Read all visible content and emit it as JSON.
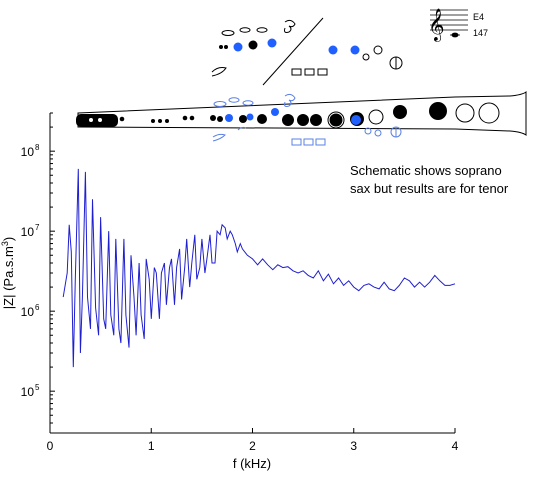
{
  "chart_data": {
    "type": "line",
    "title": "",
    "xlabel": "f (kHz)",
    "ylabel_parts": [
      "|Z| (Pa.s.m",
      "3",
      ")"
    ],
    "x_ticks": [
      0,
      1,
      2,
      3,
      4
    ],
    "y_ticks": [
      {
        "base": "10",
        "exp": "5",
        "value": 100000
      },
      {
        "base": "10",
        "exp": "6",
        "value": 1000000
      },
      {
        "base": "10",
        "exp": "7",
        "value": 10000000
      },
      {
        "base": "10",
        "exp": "8",
        "value": 100000000
      }
    ],
    "xlim": [
      0,
      4
    ],
    "ylim": [
      30000,
      300000000
    ],
    "y_scale": "log",
    "grid": false,
    "line_color": "#1f1fd0",
    "annotation_lines": [
      "Schematic shows soprano",
      "sax but results are for tenor"
    ],
    "note_label": "E4",
    "note_number": "147",
    "series": [
      {
        "x": [
          0.13,
          0.17,
          0.19,
          0.21,
          0.23,
          0.25,
          0.28,
          0.3,
          0.32,
          0.35,
          0.37,
          0.4,
          0.42,
          0.45,
          0.48,
          0.5,
          0.53,
          0.55,
          0.58,
          0.6,
          0.63,
          0.65,
          0.68,
          0.7,
          0.73,
          0.75,
          0.78,
          0.8,
          0.83,
          0.85,
          0.88,
          0.9,
          0.93,
          0.95,
          0.98,
          1.0,
          1.03,
          1.05,
          1.08,
          1.1,
          1.13,
          1.15,
          1.18,
          1.2,
          1.23,
          1.25,
          1.28,
          1.3,
          1.33,
          1.35,
          1.38,
          1.4,
          1.43,
          1.45,
          1.48,
          1.5,
          1.53,
          1.55,
          1.58,
          1.6,
          1.63,
          1.65,
          1.68,
          1.7,
          1.73,
          1.75,
          1.78,
          1.8,
          1.83,
          1.85,
          1.88,
          1.9,
          1.95,
          2.0,
          2.05,
          2.1,
          2.15,
          2.2,
          2.25,
          2.3,
          2.35,
          2.4,
          2.45,
          2.5,
          2.55,
          2.6,
          2.65,
          2.7,
          2.75,
          2.8,
          2.85,
          2.9,
          2.95,
          3.0,
          3.05,
          3.1,
          3.15,
          3.2,
          3.25,
          3.3,
          3.35,
          3.4,
          3.45,
          3.5,
          3.55,
          3.6,
          3.65,
          3.7,
          3.75,
          3.8,
          3.85,
          3.9,
          3.95,
          4.0
        ],
        "y": [
          1500000,
          3000000,
          12000000,
          5500000,
          200000,
          2500000,
          60000000,
          300000,
          1500000,
          55000000,
          1500000,
          600000,
          25000000,
          1100000,
          500000,
          15000000,
          800000,
          600000,
          10000000,
          900000,
          500000,
          8000000,
          600000,
          400000,
          8000000,
          900000,
          350000,
          5000000,
          1500000,
          500000,
          4000000,
          900000,
          450000,
          4500000,
          2500000,
          800000,
          3500000,
          3000000,
          800000,
          3000000,
          4000000,
          1200000,
          3500000,
          4500000,
          1200000,
          3500000,
          6000000,
          1400000,
          3500000,
          8000000,
          2000000,
          4000000,
          9000000,
          2500000,
          3500000,
          8000000,
          3000000,
          4500000,
          9000000,
          4000000,
          4000000,
          10000000,
          9000000,
          12000000,
          11000000,
          8000000,
          10000000,
          9000000,
          7000000,
          5500000,
          7000000,
          6000000,
          5000000,
          4500000,
          3800000,
          4500000,
          3800000,
          3300000,
          3800000,
          3500000,
          3600000,
          3200000,
          3000000,
          3200000,
          2800000,
          2600000,
          3200000,
          2400000,
          2900000,
          2200000,
          2600000,
          2100000,
          2400000,
          2000000,
          1800000,
          2100000,
          2200000,
          2000000,
          1900000,
          2300000,
          1900000,
          1800000,
          2100000,
          2600000,
          2400000,
          2000000,
          2300000,
          2000000,
          2300000,
          2800000,
          2400000,
          2100000,
          2100000,
          2200000
        ]
      }
    ]
  }
}
